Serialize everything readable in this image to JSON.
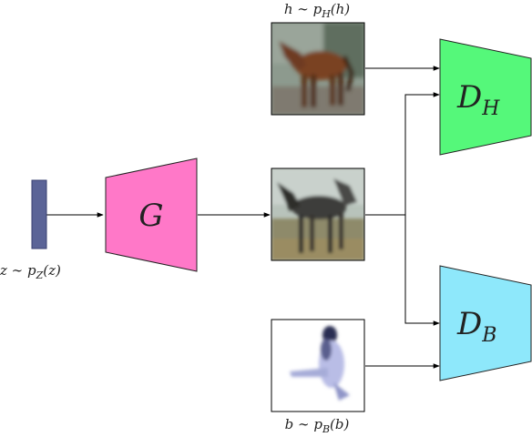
{
  "nodes": {
    "noise": {
      "caption_base": "z ∼ p",
      "caption_sub": "Z",
      "caption_arg": "(z)",
      "color": "#5b6497"
    },
    "generator": {
      "label": "G",
      "color": "#ff78c8"
    },
    "disc_h": {
      "label_base": "D",
      "label_sub": "H",
      "color": "#55f87a"
    },
    "disc_b": {
      "label_base": "D",
      "label_sub": "B",
      "color": "#8ee8fb"
    },
    "horse_real": {
      "caption_base": "h ∼ p",
      "caption_sub": "H",
      "caption_arg": "(h)",
      "image": "blurred photo of a brown horse"
    },
    "horse_generated": {
      "image": "blurred generated horse"
    },
    "bird_real": {
      "caption_base": "b ∼ p",
      "caption_sub": "B",
      "caption_arg": "(b)",
      "image": "blurred photo of a bird on white background"
    }
  }
}
